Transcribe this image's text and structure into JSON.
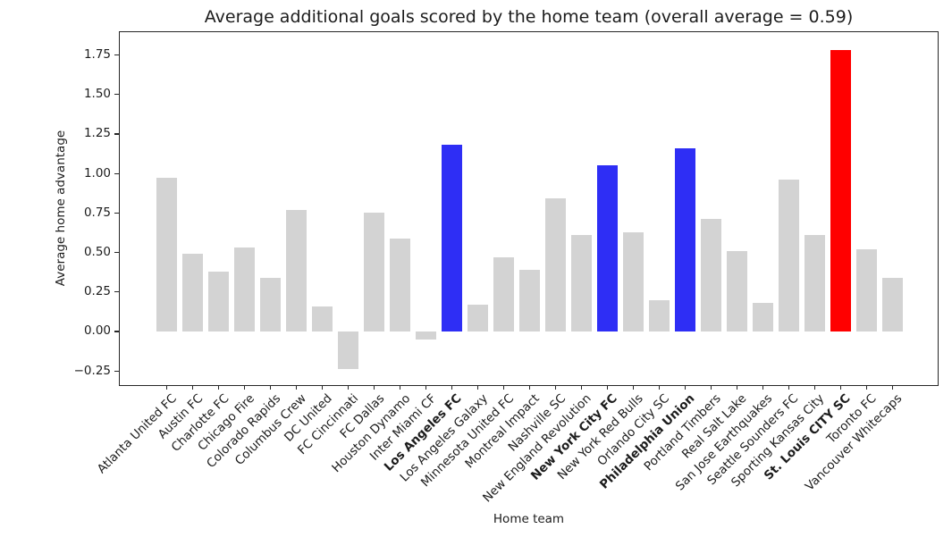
{
  "chart_data": {
    "type": "bar",
    "title": "Average additional goals scored by the home team (overall average = 0.59)",
    "xlabel": "Home team",
    "ylabel": "Average home advantage",
    "overall_average": 0.59,
    "ylim": [
      -0.345,
      1.9
    ],
    "yticks": [
      -0.25,
      0.0,
      0.25,
      0.5,
      0.75,
      1.0,
      1.25,
      1.5,
      1.75
    ],
    "grid": false,
    "legend": "none",
    "categories": [
      "Atlanta United FC",
      "Austin FC",
      "Charlotte FC",
      "Chicago Fire",
      "Colorado Rapids",
      "Columbus Crew",
      "DC United",
      "FC Cincinnati",
      "FC Dallas",
      "Houston Dynamo",
      "Inter Miami CF",
      "Los Angeles FC",
      "Los Angeles Galaxy",
      "Minnesota United FC",
      "Montreal Impact",
      "Nashville SC",
      "New England Revolution",
      "New York City FC",
      "New York Red Bulls",
      "Orlando City SC",
      "Philadelphia Union",
      "Portland Timbers",
      "Real Salt Lake",
      "San Jose Earthquakes",
      "Seattle Sounders FC",
      "Sporting Kansas City",
      "St. Louis CITY SC",
      "Toronto FC",
      "Vancouver Whitecaps"
    ],
    "values": [
      0.97,
      0.49,
      0.38,
      0.53,
      0.34,
      0.77,
      0.16,
      -0.24,
      0.75,
      0.59,
      -0.05,
      1.18,
      0.17,
      0.47,
      0.39,
      0.84,
      0.61,
      1.05,
      0.63,
      0.2,
      1.16,
      0.71,
      0.51,
      0.18,
      0.96,
      0.61,
      1.78,
      0.52,
      0.34
    ],
    "highlight": {
      "blue_teams": [
        "Los Angeles FC",
        "New York City FC",
        "Philadelphia Union"
      ],
      "red_teams": [
        "St. Louis CITY SC"
      ]
    },
    "bold_labels": [
      "Los Angeles FC",
      "New York City FC",
      "Philadelphia Union",
      "St. Louis CITY SC"
    ],
    "colors": {
      "bar_default": "#d3d3d3",
      "bar_blue": "#2e2ef5",
      "bar_red": "#ff0000",
      "axis": "#262626",
      "text": "#1c1c1c"
    }
  }
}
